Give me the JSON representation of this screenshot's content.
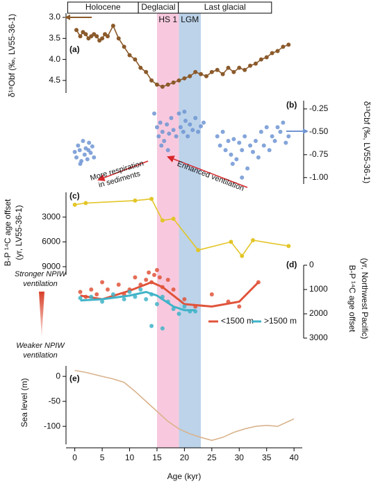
{
  "header": {
    "periods": [
      {
        "label": "Holocene",
        "from": -1.3,
        "to": 11.6
      },
      {
        "label": "Deglacial",
        "from": 11.6,
        "to": 18.9
      },
      {
        "label": "Last glacial",
        "from": 18.9,
        "to": 35.9
      }
    ]
  },
  "bands": [
    {
      "label": "HS 1",
      "from": 15,
      "to": 19,
      "color": "#f8c9de"
    },
    {
      "label": "LGM",
      "from": 19,
      "to": 23,
      "color": "#bcd3ea"
    }
  ],
  "annotations": {
    "respiration": [
      "More respiration",
      "in sediments"
    ],
    "ventilation": "Enhanced ventilation",
    "stronger": [
      "Stronger NPIW",
      "ventilation"
    ],
    "weaker": [
      "Weaker NPIW",
      "ventilation"
    ]
  },
  "chart_data": [
    {
      "type": "line",
      "panel": "(a)",
      "ylabel": [
        "δ¹⁸Obf (‰, LV55-36-1)"
      ],
      "color": "#8b5a2b",
      "y_axis": "left",
      "y_reversed": true,
      "markers": true,
      "ylim": [
        2.9,
        4.8
      ],
      "yticks": [
        {
          "value": 3,
          "label": "3.0"
        },
        3.5,
        {
          "value": 4,
          "label": "4.0"
        },
        4.5
      ],
      "x": [
        0.3,
        1,
        1.5,
        2,
        2.5,
        3,
        3.5,
        4,
        4.5,
        5,
        5.5,
        6,
        7,
        8,
        9,
        10,
        11,
        12,
        13,
        14,
        15,
        16,
        17,
        18,
        19,
        20,
        21,
        22,
        23,
        24,
        25,
        26,
        27,
        28,
        29,
        30,
        31,
        32,
        33,
        34,
        35,
        36,
        37,
        38,
        39
      ],
      "values": [
        3.3,
        3.45,
        3.35,
        3.4,
        3.5,
        3.45,
        3.4,
        3.45,
        3.55,
        3.5,
        3.4,
        3.45,
        3.2,
        3.5,
        3.7,
        3.9,
        4.0,
        4.2,
        4.3,
        4.5,
        4.6,
        4.65,
        4.6,
        4.55,
        4.5,
        4.45,
        4.4,
        4.3,
        4.35,
        4.4,
        4.3,
        4.25,
        4.35,
        4.2,
        4.3,
        4.2,
        4.25,
        4.15,
        4.1,
        4.0,
        3.95,
        3.85,
        3.8,
        3.7,
        3.65
      ]
    },
    {
      "type": "scatter",
      "panel": "(b)",
      "ylabel": [
        "δ¹³Cbf (‰, LV55-36-1)"
      ],
      "color": "#6f95d3",
      "y_axis": "right",
      "y_reversed": false,
      "ylim": [
        -1.07,
        -0.16
      ],
      "yticks": [
        {
          "value": -0.25,
          "label": "-0.25"
        },
        {
          "value": -0.5,
          "label": "-0.50"
        },
        {
          "value": -0.75,
          "label": "-0.75"
        },
        {
          "value": -1,
          "label": "-1.00"
        }
      ],
      "x": [
        0,
        0.3,
        0.6,
        0.9,
        1.2,
        1.5,
        1.8,
        2,
        2.3,
        2.6,
        2.9,
        3.2,
        3.5,
        1,
        2.5,
        14.5,
        15,
        15.3,
        15.6,
        16,
        16.3,
        16.8,
        17.2,
        17.6,
        18,
        18.5,
        19,
        19.3,
        19.8,
        20.2,
        20.6,
        21,
        21.5,
        22,
        22.5,
        23,
        23.5,
        17,
        20,
        15.8,
        26,
        26.5,
        27,
        27.5,
        28,
        28.5,
        29,
        29.5,
        30,
        30.5,
        31,
        31.5,
        32,
        32.5,
        33,
        33.5,
        34,
        34.5,
        35,
        35.5,
        36,
        36.5,
        37,
        37.5,
        38,
        38.5,
        39,
        30.5,
        28.8
      ],
      "values": [
        -0.72,
        -0.78,
        -0.65,
        -0.7,
        -0.82,
        -0.6,
        -0.75,
        -0.68,
        -0.8,
        -0.62,
        -0.73,
        -0.66,
        -0.78,
        -0.85,
        -0.7,
        -0.3,
        -0.45,
        -0.55,
        -0.4,
        -0.5,
        -0.6,
        -0.42,
        -0.52,
        -0.35,
        -0.48,
        -0.55,
        -0.3,
        -0.45,
        -0.5,
        -0.38,
        -0.55,
        -0.42,
        -0.48,
        -0.35,
        -0.5,
        -0.44,
        -0.4,
        -0.7,
        -0.28,
        -0.65,
        -0.55,
        -0.65,
        -0.5,
        -0.7,
        -0.6,
        -0.75,
        -0.58,
        -0.8,
        -0.62,
        -0.7,
        -0.55,
        -0.9,
        -0.65,
        -0.72,
        -0.6,
        -0.78,
        -0.5,
        -0.65,
        -0.45,
        -0.7,
        -0.55,
        -0.6,
        -0.45,
        -0.5,
        -0.4,
        -0.62,
        -0.55,
        -1.0,
        -0.85
      ]
    },
    {
      "type": "line",
      "panel": "(c)",
      "ylabel": [
        "B-P ¹⁴C age offset",
        "(yr, LV55-36-1)"
      ],
      "color": "#e3c528",
      "y_axis": "left",
      "y_reversed": true,
      "markers": true,
      "ylim": [
        0,
        10000
      ],
      "yticks": [
        3000,
        6000,
        9000
      ],
      "x": [
        0,
        2,
        11,
        14,
        16,
        18,
        22.5,
        28.5,
        30.5,
        32.5,
        39
      ],
      "values": [
        1500,
        1300,
        1000,
        800,
        3400,
        3200,
        7000,
        6000,
        7700,
        5800,
        6500
      ]
    },
    {
      "type": "scatter",
      "panel": "(d)",
      "ylabel": [
        "B-P ¹⁴C age offset",
        "(yr, Northwest Pacific)"
      ],
      "y_axis": "right",
      "y_reversed": true,
      "legend": "lower right",
      "ylim": [
        0,
        3000
      ],
      "yticks": [
        0,
        1000,
        2000,
        3000
      ],
      "series": [
        {
          "name": "<1500 m",
          "color": "#e0533a",
          "x": [
            1,
            2,
            3,
            4,
            5,
            6,
            8,
            9,
            10,
            11,
            12,
            13,
            13.5,
            14,
            14.5,
            15,
            15.5,
            16,
            17,
            18,
            20,
            22,
            25,
            28,
            30,
            33.5
          ],
          "values": [
            1100,
            1300,
            1000,
            1200,
            700,
            1000,
            800,
            1200,
            1000,
            500,
            800,
            600,
            300,
            700,
            400,
            200,
            500,
            900,
            600,
            1000,
            1400,
            1700,
            1200,
            1500,
            1700,
            700
          ],
          "fit_x": [
            1,
            5,
            10,
            14,
            16,
            20,
            25,
            30,
            33.5
          ],
          "fit_values": [
            1250,
            1400,
            1050,
            700,
            900,
            1600,
            1700,
            1500,
            700
          ]
        },
        {
          "name": ">1500 m",
          "color": "#3fb3c8",
          "x": [
            1,
            3,
            5,
            7,
            9,
            10,
            11,
            12,
            13,
            14,
            15,
            16,
            17,
            18,
            19,
            20,
            21,
            22,
            14,
            16
          ],
          "values": [
            1350,
            1300,
            1500,
            1200,
            1400,
            1100,
            1300,
            1000,
            1400,
            1200,
            1600,
            1300,
            1500,
            1800,
            2000,
            1700,
            1900,
            1900,
            2500,
            2600
          ],
          "fit_x": [
            1,
            5,
            10,
            13,
            15,
            18,
            20,
            22
          ],
          "fit_values": [
            1450,
            1400,
            1250,
            1100,
            1250,
            1700,
            1850,
            1850
          ]
        }
      ]
    },
    {
      "type": "line",
      "panel": "(e)",
      "ylabel": [
        "Sea level (m)"
      ],
      "color": "#d9b38c",
      "y_axis": "left",
      "y_reversed": false,
      "markers": false,
      "ylim": [
        -136,
        21
      ],
      "yticks": [
        0,
        -50,
        -100
      ],
      "x": [
        0,
        2,
        5,
        7,
        9,
        11,
        13,
        15,
        17,
        19,
        21,
        23,
        25,
        27,
        29,
        31,
        33,
        35,
        37,
        39,
        40
      ],
      "values": [
        12,
        8,
        0,
        -5,
        -12,
        -30,
        -50,
        -70,
        -90,
        -105,
        -115,
        -122,
        -128,
        -122,
        -112,
        -105,
        -100,
        -98,
        -100,
        -90,
        -85
      ],
      "xlabel": "Age (kyr)",
      "xlim": [
        -1.6,
        41.5
      ],
      "xticks": [
        0,
        5,
        10,
        15,
        20,
        25,
        30,
        35,
        40
      ]
    }
  ]
}
